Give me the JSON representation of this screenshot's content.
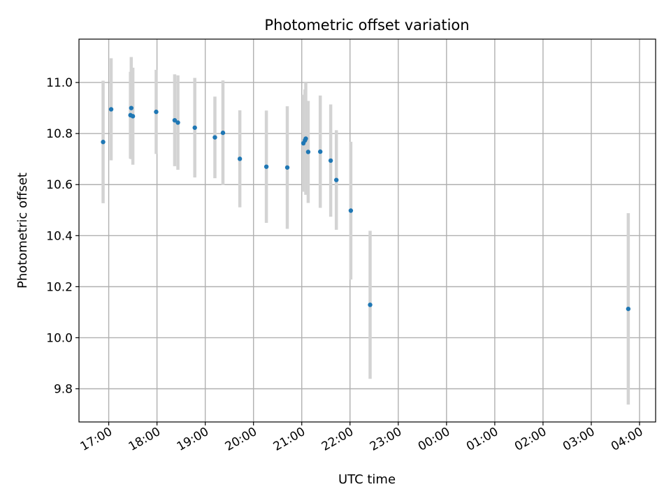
{
  "chart_data": {
    "type": "scatter",
    "title": "Photometric offset variation",
    "xlabel": "UTC time",
    "ylabel": "Photometric offset",
    "grid": true,
    "x_ticks": [
      {
        "value": "2024-01-01T17:00",
        "label": "17:00"
      },
      {
        "value": "2024-01-01T18:00",
        "label": "18:00"
      },
      {
        "value": "2024-01-01T19:00",
        "label": "19:00"
      },
      {
        "value": "2024-01-01T20:00",
        "label": "20:00"
      },
      {
        "value": "2024-01-01T21:00",
        "label": "21:00"
      },
      {
        "value": "2024-01-01T22:00",
        "label": "22:00"
      },
      {
        "value": "2024-01-01T23:00",
        "label": "23:00"
      },
      {
        "value": "2024-01-02T00:00",
        "label": "00:00"
      },
      {
        "value": "2024-01-02T01:00",
        "label": "01:00"
      },
      {
        "value": "2024-01-02T02:00",
        "label": "02:00"
      },
      {
        "value": "2024-01-02T03:00",
        "label": "03:00"
      },
      {
        "value": "2024-01-02T04:00",
        "label": "04:00"
      }
    ],
    "xlim": [
      "2024-01-01T16:23",
      "2024-01-02T04:20"
    ],
    "ylim": [
      9.67,
      11.17
    ],
    "y_ticks": [
      9.8,
      10.0,
      10.2,
      10.4,
      10.6,
      10.8,
      11.0
    ],
    "y_tick_labels": [
      "9.8",
      "10.0",
      "10.2",
      "10.4",
      "10.6",
      "10.8",
      "11.0"
    ],
    "colors": {
      "points": "#1f77b4",
      "error_bars": "#d3d3d3",
      "grid": "#b0b0b0"
    },
    "series": [
      {
        "points": [
          {
            "x": "2024-01-01T16:53",
            "y": 10.767,
            "err": 0.24
          },
          {
            "x": "2024-01-01T17:03",
            "y": 10.895,
            "err": 0.2
          },
          {
            "x": "2024-01-01T17:27",
            "y": 10.872,
            "err": 0.17
          },
          {
            "x": "2024-01-01T17:28",
            "y": 10.9,
            "err": 0.2
          },
          {
            "x": "2024-01-01T17:30",
            "y": 10.868,
            "err": 0.19
          },
          {
            "x": "2024-01-01T17:59",
            "y": 10.885,
            "err": 0.165
          },
          {
            "x": "2024-01-01T18:22",
            "y": 10.852,
            "err": 0.18
          },
          {
            "x": "2024-01-01T18:26",
            "y": 10.843,
            "err": 0.185
          },
          {
            "x": "2024-01-01T18:47",
            "y": 10.823,
            "err": 0.195
          },
          {
            "x": "2024-01-01T19:12",
            "y": 10.785,
            "err": 0.16
          },
          {
            "x": "2024-01-01T19:22",
            "y": 10.803,
            "err": 0.205
          },
          {
            "x": "2024-01-01T19:43",
            "y": 10.701,
            "err": 0.19
          },
          {
            "x": "2024-01-01T20:16",
            "y": 10.67,
            "err": 0.22
          },
          {
            "x": "2024-01-01T20:42",
            "y": 10.667,
            "err": 0.24
          },
          {
            "x": "2024-01-01T21:02",
            "y": 10.762,
            "err": 0.19
          },
          {
            "x": "2024-01-01T21:04",
            "y": 10.773,
            "err": 0.2
          },
          {
            "x": "2024-01-01T21:05",
            "y": 10.78,
            "err": 0.22
          },
          {
            "x": "2024-01-01T21:08",
            "y": 10.728,
            "err": 0.2
          },
          {
            "x": "2024-01-01T21:23",
            "y": 10.729,
            "err": 0.22
          },
          {
            "x": "2024-01-01T21:36",
            "y": 10.694,
            "err": 0.22
          },
          {
            "x": "2024-01-01T21:43",
            "y": 10.618,
            "err": 0.195
          },
          {
            "x": "2024-01-01T22:01",
            "y": 10.498,
            "err": 0.27
          },
          {
            "x": "2024-01-01T22:25",
            "y": 10.129,
            "err": 0.29
          },
          {
            "x": "2024-01-02T03:46",
            "y": 10.113,
            "err": 0.375
          }
        ]
      }
    ]
  }
}
